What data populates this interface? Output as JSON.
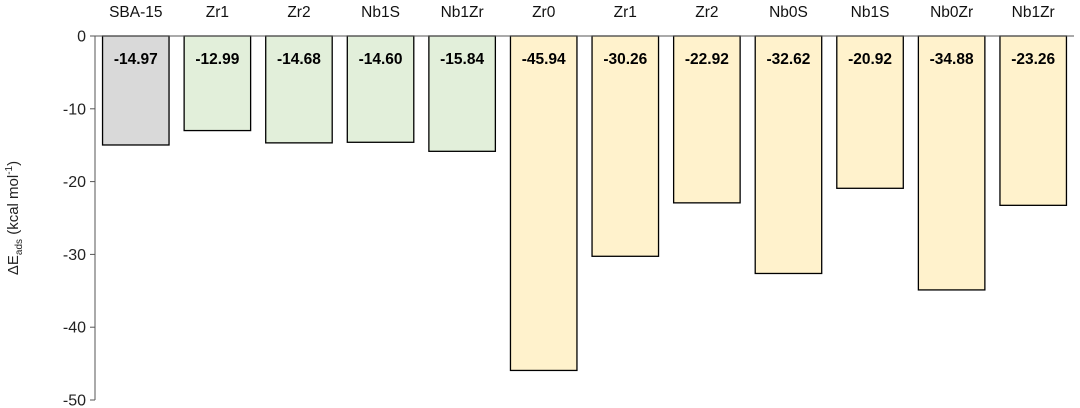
{
  "chart_data": {
    "type": "bar",
    "categories": [
      "SBA-15",
      "Zr1",
      "Zr2",
      "Nb1S",
      "Nb1Zr",
      "Zr0",
      "Zr1",
      "Zr2",
      "Nb0S",
      "Nb1S",
      "Nb0Zr",
      "Nb1Zr"
    ],
    "values": [
      -14.97,
      -12.99,
      -14.68,
      -14.6,
      -15.84,
      -45.94,
      -30.26,
      -22.92,
      -32.62,
      -20.92,
      -34.88,
      -23.26
    ],
    "value_labels": [
      "-14.97",
      "-12.99",
      "-14.68",
      "-14.60",
      "-15.84",
      "-45.94",
      "-30.26",
      "-22.92",
      "-32.62",
      "-20.92",
      "-34.88",
      "-23.26"
    ],
    "bar_colors": [
      "#d9d9d9",
      "#e2efda",
      "#e2efda",
      "#e2efda",
      "#e2efda",
      "#fff2cc",
      "#fff2cc",
      "#fff2cc",
      "#fff2cc",
      "#fff2cc",
      "#fff2cc",
      "#fff2cc"
    ],
    "bar_edge_color": "#000000",
    "ylim": [
      -50,
      0
    ],
    "yticks": [
      0,
      -10,
      -20,
      -30,
      -40,
      -50
    ],
    "ytick_labels": [
      "0",
      "-10",
      "-20",
      "-30",
      "-40",
      "-50"
    ],
    "ylabel": {
      "prefix": "ΔE",
      "sub": "ads",
      "middle": " (kcal mol",
      "sup": "-1",
      "suffix": ")"
    },
    "xlabel": "",
    "title": "",
    "grid": false,
    "legend": "none"
  }
}
